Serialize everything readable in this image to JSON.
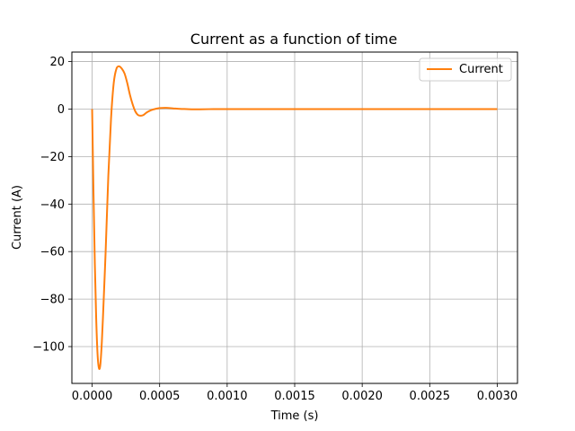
{
  "chart_data": {
    "type": "line",
    "title": "Current as a function of time",
    "xlabel": "Time (s)",
    "ylabel": "Current (A)",
    "xlim": [
      -0.00015,
      0.00315
    ],
    "ylim": [
      -115.5,
      24
    ],
    "x_ticks": [
      0.0,
      0.0005,
      0.001,
      0.0015,
      0.002,
      0.0025,
      0.003
    ],
    "x_tick_labels": [
      "0.0000",
      "0.0005",
      "0.0010",
      "0.0015",
      "0.0020",
      "0.0025",
      "0.0030"
    ],
    "y_ticks": [
      20,
      0,
      -20,
      -40,
      -60,
      -80,
      -100
    ],
    "y_tick_labels": [
      "20",
      "0",
      "−20",
      "−40",
      "−60",
      "−80",
      "−100"
    ],
    "grid": true,
    "legend_position": "top-right",
    "series": [
      {
        "name": "Current",
        "color": "#ff7f0e",
        "x": [
          0.0,
          1e-05,
          2e-05,
          3e-05,
          4e-05,
          5e-05,
          6e-05,
          7e-05,
          8e-05,
          0.0001,
          0.00012,
          0.00014,
          0.00016,
          0.00018,
          0.0002,
          0.00022,
          0.00024,
          0.00026,
          0.00028,
          0.0003,
          0.00032,
          0.00034,
          0.00036,
          0.00038,
          0.0004,
          0.00042,
          0.00045,
          0.0005,
          0.00055,
          0.0006,
          0.00065,
          0.0007,
          0.00075,
          0.0008,
          0.0009,
          0.001,
          0.0012,
          0.0015,
          0.002,
          0.0025,
          0.003
        ],
        "y": [
          0.0,
          -35,
          -65,
          -88,
          -103,
          -109,
          -108,
          -100,
          -88,
          -60,
          -28,
          -4,
          11,
          17,
          18,
          17,
          15,
          11,
          6,
          2,
          -1,
          -2.5,
          -2.8,
          -2.5,
          -1.6,
          -0.9,
          -0.2,
          0.4,
          0.5,
          0.3,
          0.1,
          0.0,
          -0.1,
          -0.1,
          0.0,
          0.0,
          0.0,
          0.0,
          0.0,
          0.0,
          0.0
        ]
      }
    ]
  }
}
